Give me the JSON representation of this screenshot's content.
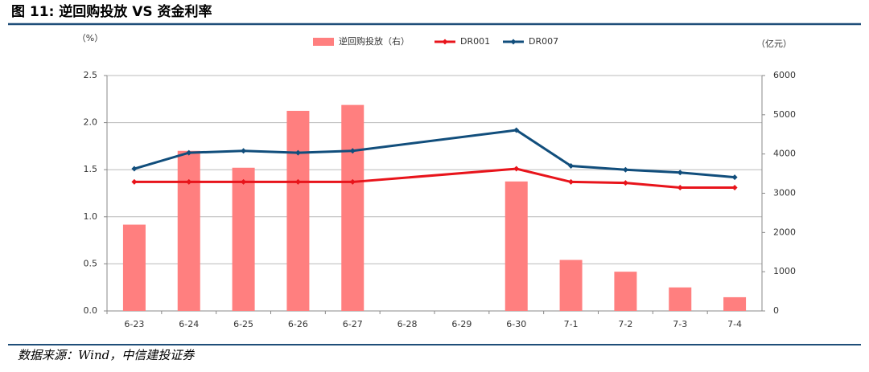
{
  "title": "图 11: 逆回购投放 VS 资金利率",
  "source": "数据来源：Wind，中信建投证券",
  "chart_data": {
    "type": "bar-line",
    "y_label": "（%）",
    "y2_label": "（亿元）",
    "categories": [
      "6-23",
      "6-24",
      "6-25",
      "6-26",
      "6-27",
      "6-28",
      "6-29",
      "6-30",
      "7-1",
      "7-2",
      "7-3",
      "7-4"
    ],
    "series": [
      {
        "name": "逆回购投放（右）",
        "type": "bar",
        "axis": "y2",
        "color": "#ff7f7f",
        "values": [
          2200,
          4080,
          3650,
          5100,
          5250,
          null,
          null,
          3300,
          1300,
          1000,
          600,
          350
        ]
      },
      {
        "name": "DR001",
        "type": "line",
        "color": "#e8141b",
        "values": [
          1.37,
          1.37,
          1.37,
          1.37,
          1.37,
          null,
          null,
          1.51,
          1.37,
          1.36,
          1.31,
          1.31
        ]
      },
      {
        "name": "DR007",
        "type": "line",
        "color": "#114e7c",
        "values": [
          1.51,
          1.68,
          1.7,
          1.68,
          1.7,
          null,
          null,
          1.92,
          1.54,
          1.5,
          1.47,
          1.42
        ]
      }
    ],
    "connect_gaps": true,
    "ylim": [
      0,
      2.5
    ],
    "yticks": [
      {
        "value": 0,
        "label": "0.0"
      },
      0.5,
      {
        "value": 1,
        "label": "1.0"
      },
      1.5,
      {
        "value": 2,
        "label": "2.0"
      },
      2.5
    ],
    "y2lim": [
      0,
      6000
    ],
    "y2ticks": [
      0,
      1000,
      2000,
      3000,
      4000,
      5000,
      6000
    ],
    "grid": true
  }
}
